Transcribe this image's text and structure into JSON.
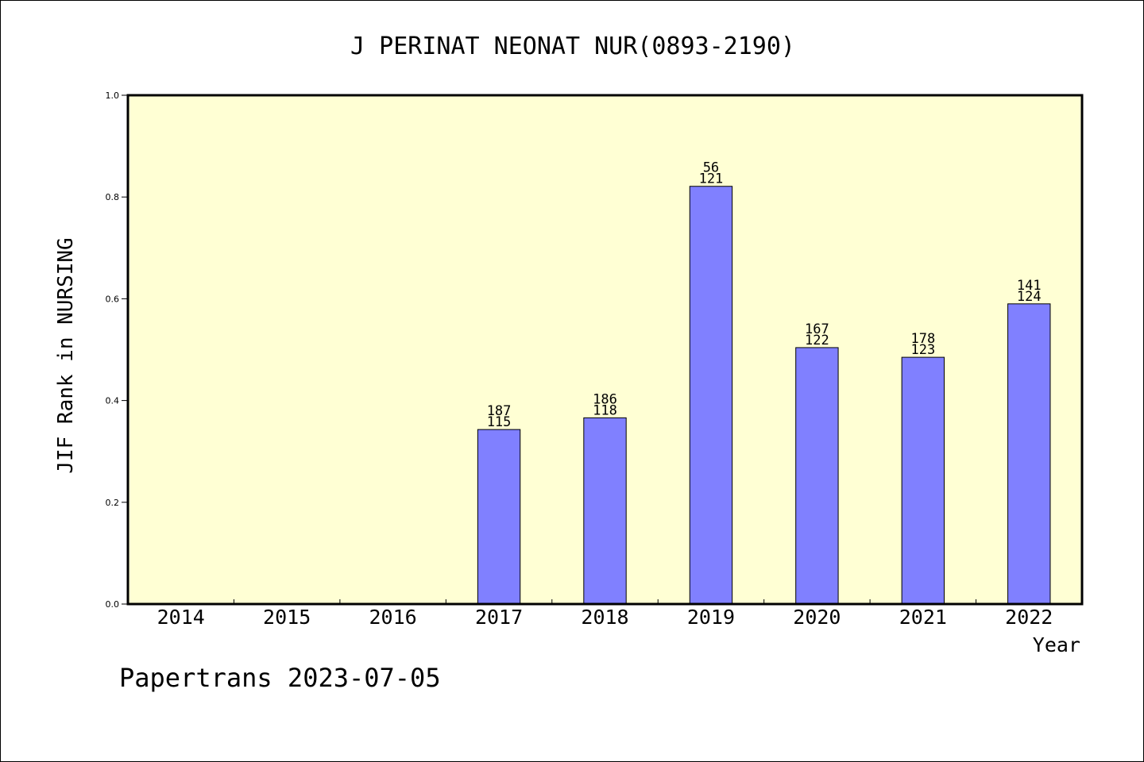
{
  "chart_data": {
    "type": "bar",
    "title": "J PERINAT NEONAT NUR(0893-2190)",
    "xlabel": "Year",
    "ylabel": "JIF Rank in NURSING",
    "footer": "Papertrans 2023-07-05",
    "categories": [
      "2014",
      "2015",
      "2016",
      "2017",
      "2018",
      "2019",
      "2020",
      "2021",
      "2022"
    ],
    "values": [
      null,
      null,
      null,
      0.343,
      0.366,
      0.821,
      0.504,
      0.485,
      0.59
    ],
    "label_top": [
      "",
      "",
      "",
      "187",
      "186",
      "56",
      "167",
      "178",
      "141"
    ],
    "label_bottom": [
      "",
      "",
      "",
      "115",
      "118",
      "121",
      "122",
      "123",
      "124"
    ],
    "ylim": [
      0,
      1.0
    ],
    "yticks": [
      "0.0",
      "0.2",
      "0.4",
      "0.6",
      "0.8",
      "1.0"
    ],
    "grid": false,
    "colors": {
      "bar": "#8080ff",
      "plot_background": "#ffffd4",
      "axis": "#000000"
    }
  }
}
